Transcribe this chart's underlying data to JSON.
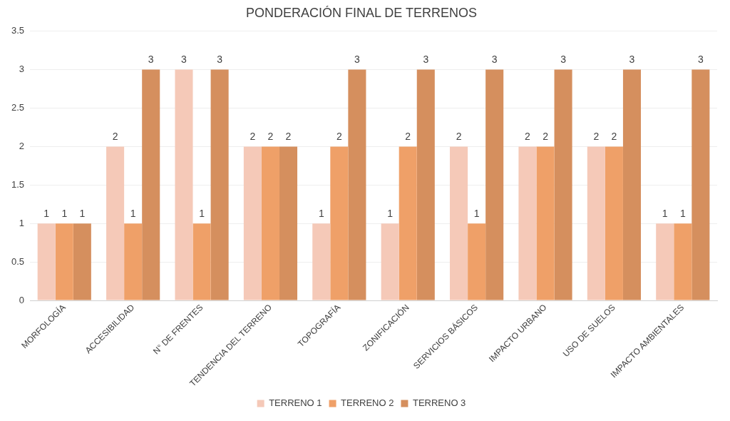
{
  "chart_data": {
    "type": "bar",
    "title": "PONDERACIÓN FINAL DE TERRENOS",
    "categories": [
      "MORFOLOGÍA",
      "ACCESIBILIDAD",
      "N° DE FRENTES",
      "TENDENCIA DEL TERRENO",
      "TOPOGRAFÍA",
      "ZONIFICACIÓN",
      "SERVICIOS BÁSICOS",
      "IMPACTO URBANO",
      "USO DE SUELOS",
      "IMPACTO AMBIENTALES"
    ],
    "series": [
      {
        "name": "TERRENO 1",
        "color": "#f5c9b8",
        "values": [
          1,
          2,
          3,
          2,
          1,
          1,
          2,
          2,
          2,
          1
        ]
      },
      {
        "name": "TERRENO 2",
        "color": "#efa068",
        "values": [
          1,
          1,
          1,
          2,
          2,
          2,
          1,
          2,
          2,
          1
        ]
      },
      {
        "name": "TERRENO 3",
        "color": "#d58f5e",
        "values": [
          1,
          3,
          3,
          2,
          3,
          3,
          3,
          3,
          3,
          3
        ]
      }
    ],
    "ylim": [
      0,
      3.5
    ],
    "yticks": [
      0,
      0.5,
      1,
      1.5,
      2,
      2.5,
      3,
      3.5
    ],
    "grid": "y",
    "legend": "bottom",
    "data_labels": true
  }
}
